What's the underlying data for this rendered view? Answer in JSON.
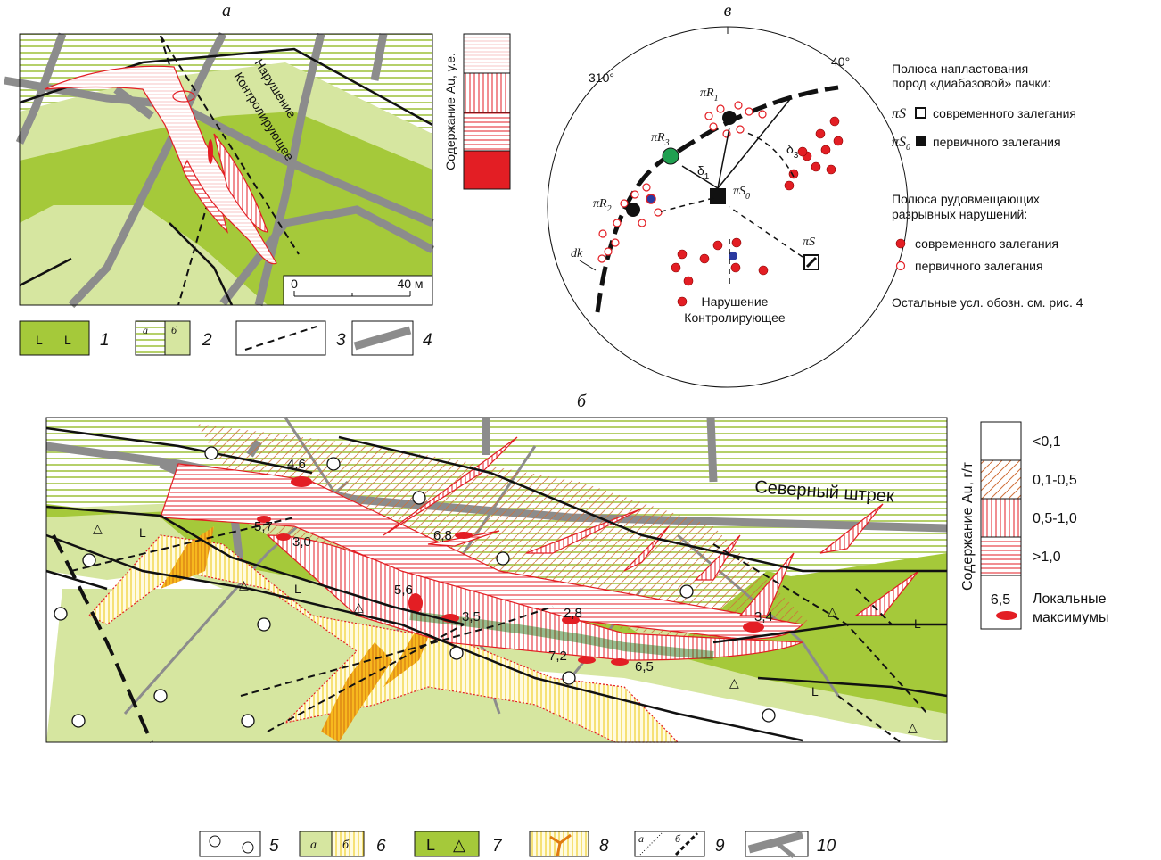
{
  "panel_a": {
    "label": "а",
    "legend_title": "Содержание Au, у.е.",
    "fault_label": [
      "Нарушение",
      "Контролирующее"
    ],
    "scale": [
      "0",
      "40 м"
    ]
  },
  "legend_top": [
    {
      "num": "1"
    },
    {
      "num": "2",
      "a": "а",
      "b": "б"
    },
    {
      "num": "3"
    },
    {
      "num": "4"
    }
  ],
  "panel_v": {
    "label": "в",
    "azimuths": [
      "310°",
      "40°"
    ],
    "poles": [
      {
        "main": "πR",
        "sub": "1"
      },
      {
        "main": "πR",
        "sub": "3"
      },
      {
        "main": "πR",
        "sub": "2"
      },
      {
        "main": "πS",
        "sub": "0"
      },
      {
        "main": "πS"
      }
    ],
    "deltas": [
      {
        "main": "δ",
        "sub": "1"
      },
      {
        "main": "δ",
        "sub": "3"
      }
    ],
    "dk": "dk",
    "fault_label": [
      "Нарушение",
      "Контролирующее"
    ],
    "legend": {
      "bedding_title": [
        "Полюса напластования",
        "пород «диабазовой» пачки:"
      ],
      "bedding_items": [
        {
          "symbol": {
            "main": "πS"
          },
          "text": "современного залегания"
        },
        {
          "symbol": {
            "main": "πS",
            "sub": "0"
          },
          "text": "первичного залегания"
        }
      ],
      "faults_title": [
        "Полюса  рудовмещающих",
        "разрывных нарушений:"
      ],
      "fault_items": [
        "современного залегания",
        "первичного залегания"
      ],
      "note": "Остальные усл. обозн. см. рис. 4"
    }
  },
  "panel_b": {
    "label": "б",
    "drift": "Северный штрек",
    "maxima": [
      "4,6",
      "5,7",
      "3,0",
      "6,8",
      "5,6",
      "3,5",
      "2,8",
      "7,2",
      "6,5",
      "3,4"
    ],
    "legend_title": "Содержание Au, г/т",
    "grades": [
      "<0,1",
      "0,1-0,5",
      "0,5-1,0",
      ">1,0"
    ],
    "max_value": "6,5",
    "max_label": [
      "Локальные",
      "максимумы"
    ]
  },
  "legend_bottom": [
    {
      "num": "5"
    },
    {
      "num": "6",
      "a": "а",
      "b": "б"
    },
    {
      "num": "7"
    },
    {
      "num": "8"
    },
    {
      "num": "9",
      "a": "а",
      "b": "б"
    },
    {
      "num": "10"
    }
  ]
}
